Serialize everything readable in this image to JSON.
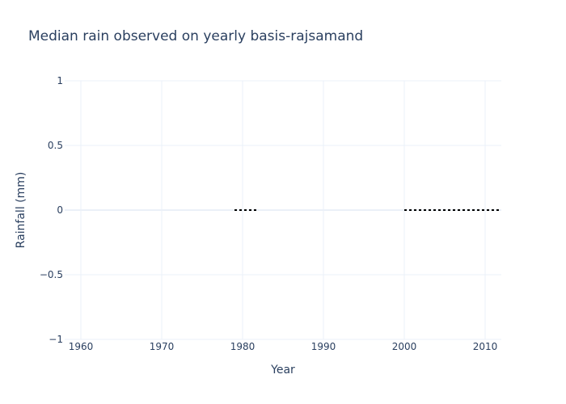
{
  "chart_data": {
    "type": "line",
    "title": "Median rain observed on yearly basis-rajsamand",
    "xlabel": "Year",
    "ylabel": "Rainfall (mm)",
    "xlim": [
      1958,
      2012
    ],
    "ylim": [
      -1,
      1
    ],
    "x_ticks": [
      1960,
      1970,
      1980,
      1990,
      2000,
      2010
    ],
    "y_ticks": [
      1,
      0.5,
      0,
      -0.5,
      -1
    ],
    "y_tick_labels": [
      "1",
      "0.5",
      "0",
      "−0.5",
      "−1"
    ],
    "grid": true,
    "series": [
      {
        "line_style": "dotted",
        "color": "#000000",
        "segments": [
          {
            "x": [
              1979,
              1982
            ],
            "y": [
              0,
              0
            ]
          },
          {
            "x": [
              2000,
              2012
            ],
            "y": [
              0,
              0
            ]
          }
        ]
      }
    ]
  }
}
